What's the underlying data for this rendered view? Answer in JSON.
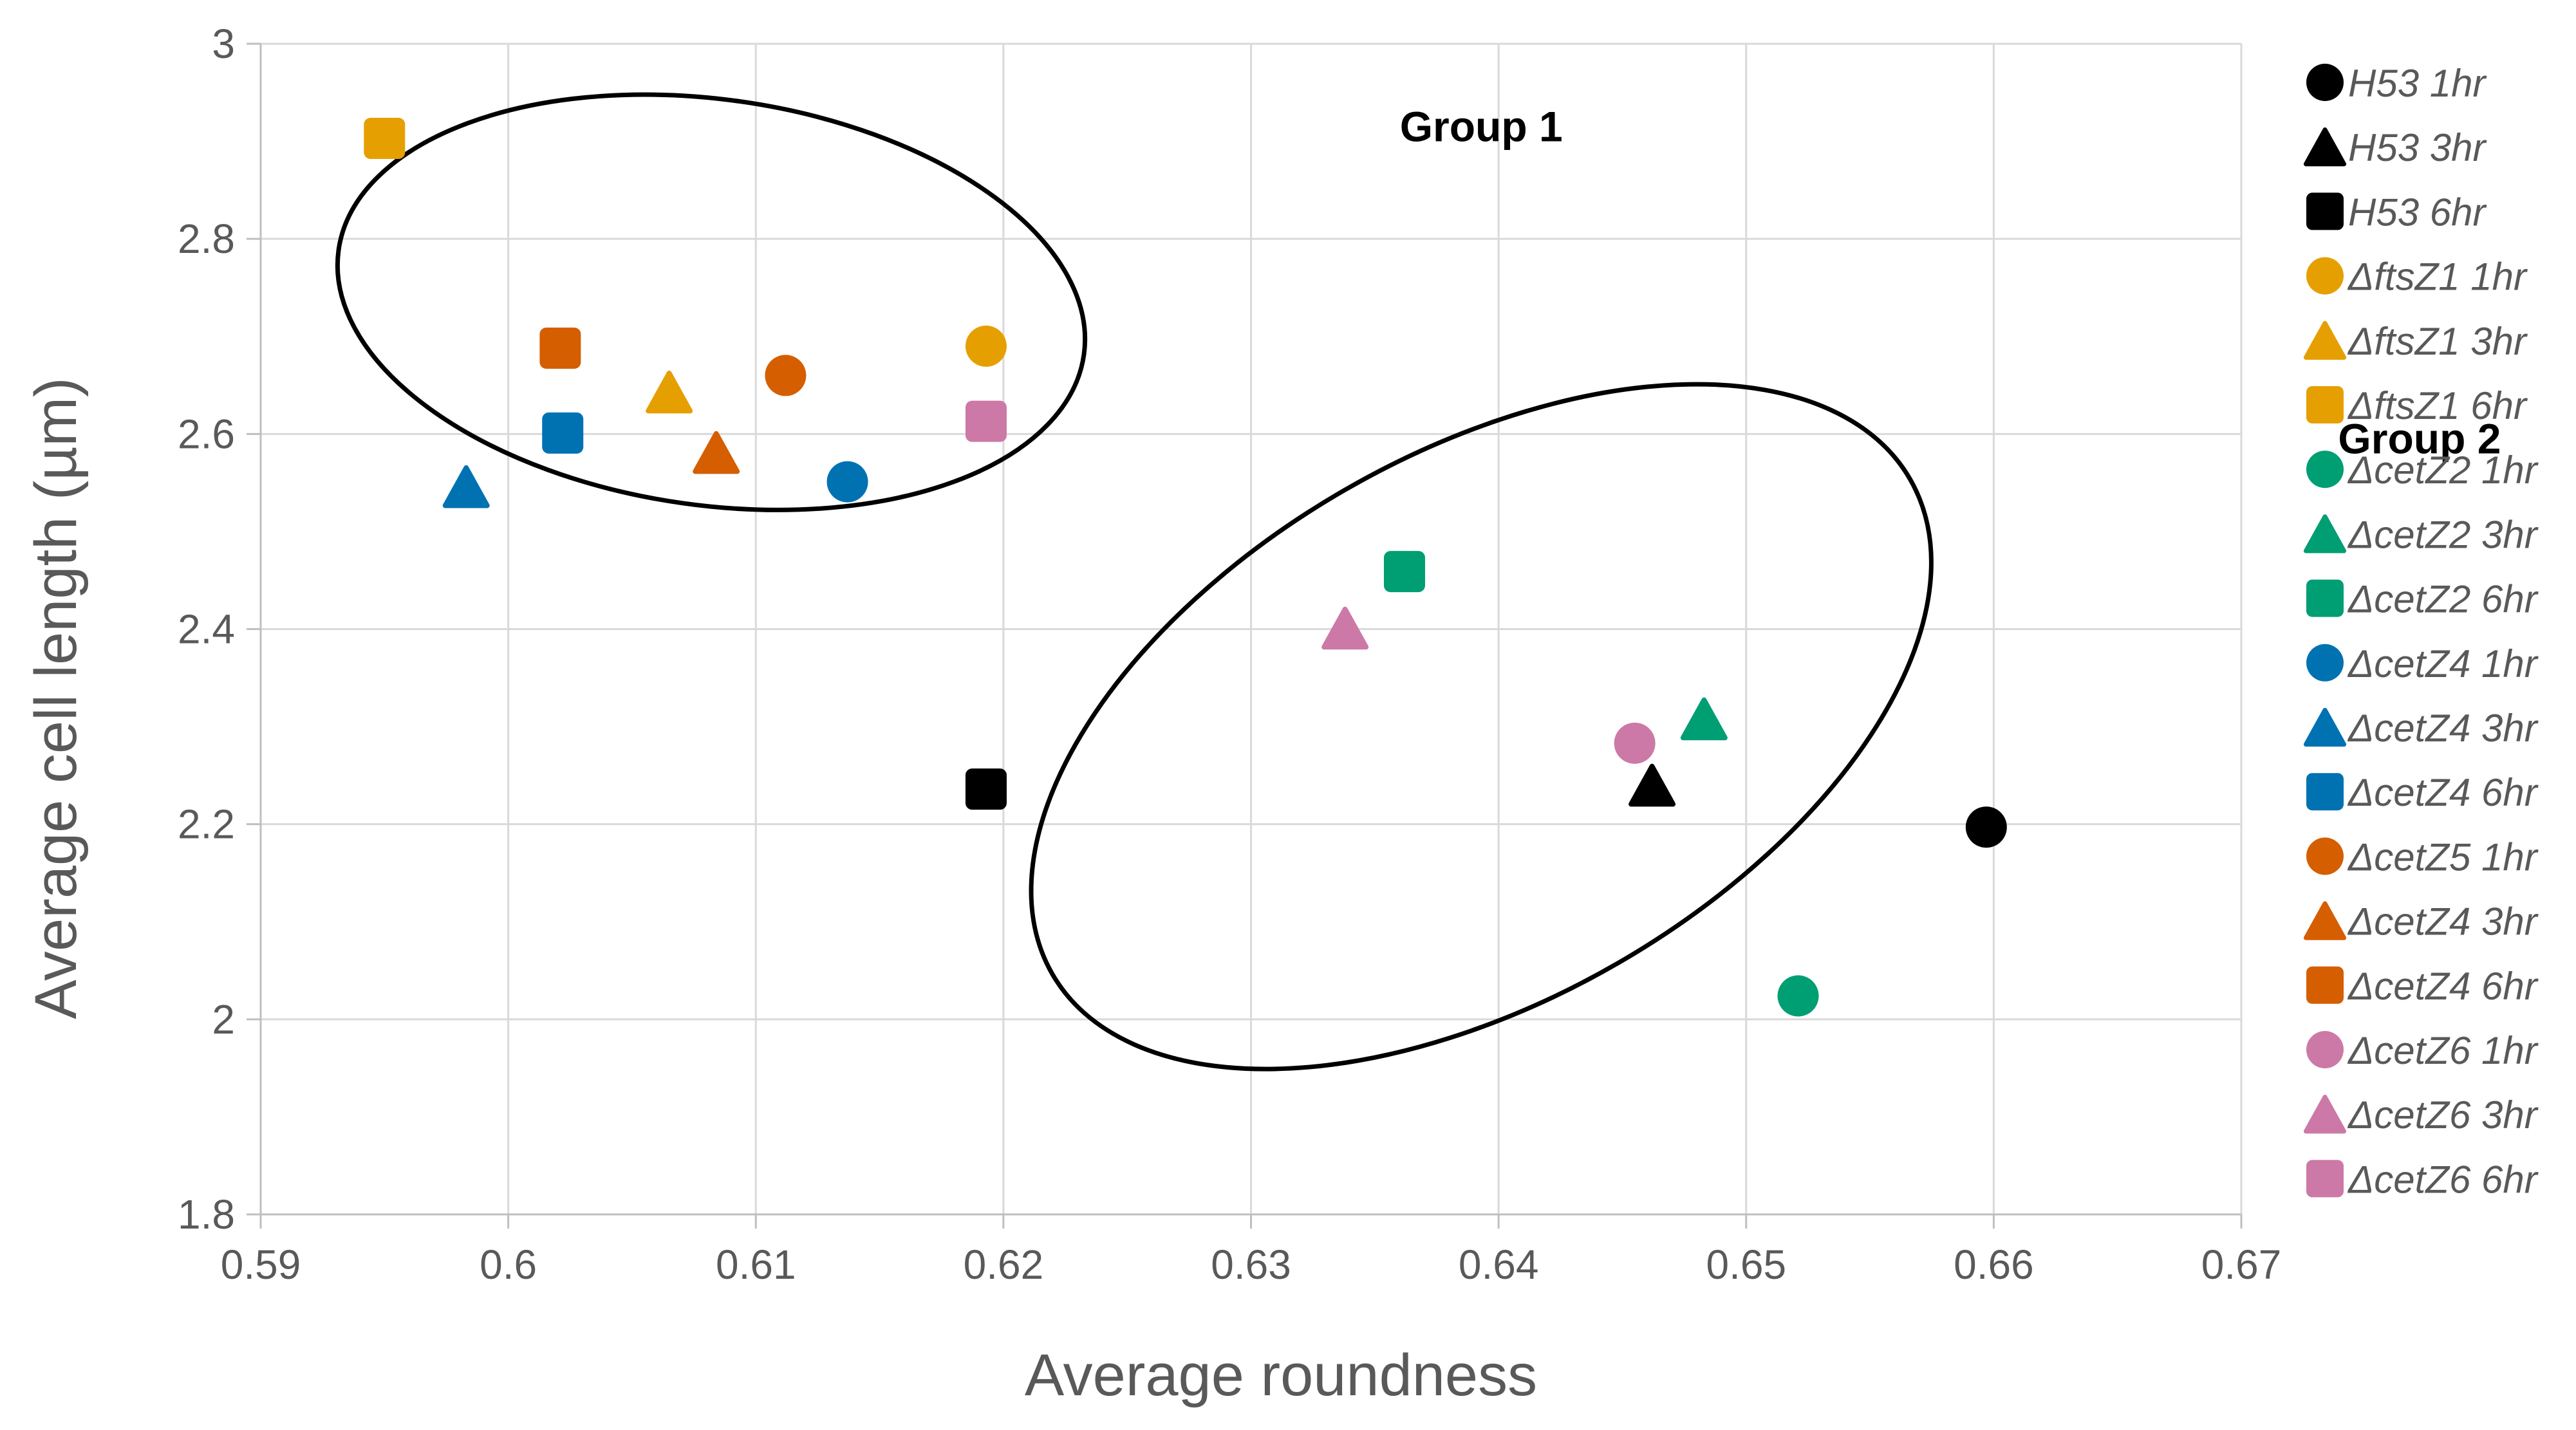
{
  "chart_data": {
    "type": "scatter",
    "title": "",
    "xlabel": "Average roundness",
    "ylabel": "Average cell length (µm)",
    "xlim": [
      0.59,
      0.67
    ],
    "ylim": [
      1.8,
      3.0
    ],
    "xticks": [
      "0.59",
      "0.6",
      "0.61",
      "0.62",
      "0.63",
      "0.64",
      "0.65",
      "0.66",
      "0.67"
    ],
    "yticks": [
      "1.8",
      "2",
      "2.2",
      "2.4",
      "2.6",
      "2.8",
      "3"
    ],
    "grid": true,
    "legend_position": "right",
    "series": [
      {
        "name": "H53 1hr",
        "marker": "circle",
        "color": "#000000",
        "x": 0.6597,
        "y": 2.197
      },
      {
        "name": "H53 3hr",
        "marker": "triangle",
        "color": "#000000",
        "x": 0.6462,
        "y": 2.24
      },
      {
        "name": "H53 6hr",
        "marker": "square",
        "color": "#000000",
        "x": 0.6193,
        "y": 2.236
      },
      {
        "name": "ΔftsZ1 1hr",
        "marker": "circle",
        "color": "#E69F00",
        "x": 0.6193,
        "y": 2.69
      },
      {
        "name": "ΔftsZ1 3hr",
        "marker": "triangle",
        "color": "#E69F00",
        "x": 0.6065,
        "y": 2.643
      },
      {
        "name": "ΔftsZ1 6hr",
        "marker": "square",
        "color": "#E69F00",
        "x": 0.595,
        "y": 2.903
      },
      {
        "name": "ΔcetZ2 1hr",
        "marker": "circle",
        "color": "#009E73",
        "x": 0.6521,
        "y": 2.024
      },
      {
        "name": "ΔcetZ2 3hr",
        "marker": "triangle",
        "color": "#009E73",
        "x": 0.6483,
        "y": 2.308
      },
      {
        "name": "ΔcetZ2 6hr",
        "marker": "square",
        "color": "#009E73",
        "x": 0.6362,
        "y": 2.459
      },
      {
        "name": "ΔcetZ4 1hr",
        "marker": "circle",
        "color": "#0072B2",
        "x": 0.6137,
        "y": 2.551
      },
      {
        "name": "ΔcetZ4 3hr",
        "marker": "triangle",
        "color": "#0072B2",
        "x": 0.5983,
        "y": 2.546
      },
      {
        "name": "ΔcetZ4 6hr",
        "marker": "square",
        "color": "#0072B2",
        "x": 0.6022,
        "y": 2.601
      },
      {
        "name": "ΔcetZ5 1hr",
        "marker": "circle",
        "color": "#D55E00",
        "x": 0.6112,
        "y": 2.66
      },
      {
        "name": "ΔcetZ4 3hr",
        "marker": "triangle",
        "color": "#D55E00",
        "x": 0.6084,
        "y": 2.581
      },
      {
        "name": "ΔcetZ4 6hr",
        "marker": "square",
        "color": "#D55E00",
        "x": 0.6021,
        "y": 2.688
      },
      {
        "name": "ΔcetZ6 1hr",
        "marker": "circle",
        "color": "#CC79A7",
        "x": 0.6455,
        "y": 2.283
      },
      {
        "name": "ΔcetZ6 3hr",
        "marker": "triangle",
        "color": "#CC79A7",
        "x": 0.6338,
        "y": 2.401
      },
      {
        "name": "ΔcetZ6 6hr",
        "marker": "square",
        "color": "#CC79A7",
        "x": 0.6193,
        "y": 2.613
      }
    ],
    "annotations": [
      {
        "text": "Group 1",
        "x": 0.6393,
        "y": 2.9
      },
      {
        "text": "Group 2",
        "x": 0.6772,
        "y": 2.58
      }
    ],
    "ellipses": [
      {
        "cx": 0.6082,
        "cy": 2.735,
        "rx": 0.0152,
        "ry": 0.208,
        "angle": -8
      },
      {
        "cx": 0.6393,
        "cy": 2.3,
        "rx": 0.02,
        "ry": 0.28,
        "angle": 30
      }
    ]
  }
}
